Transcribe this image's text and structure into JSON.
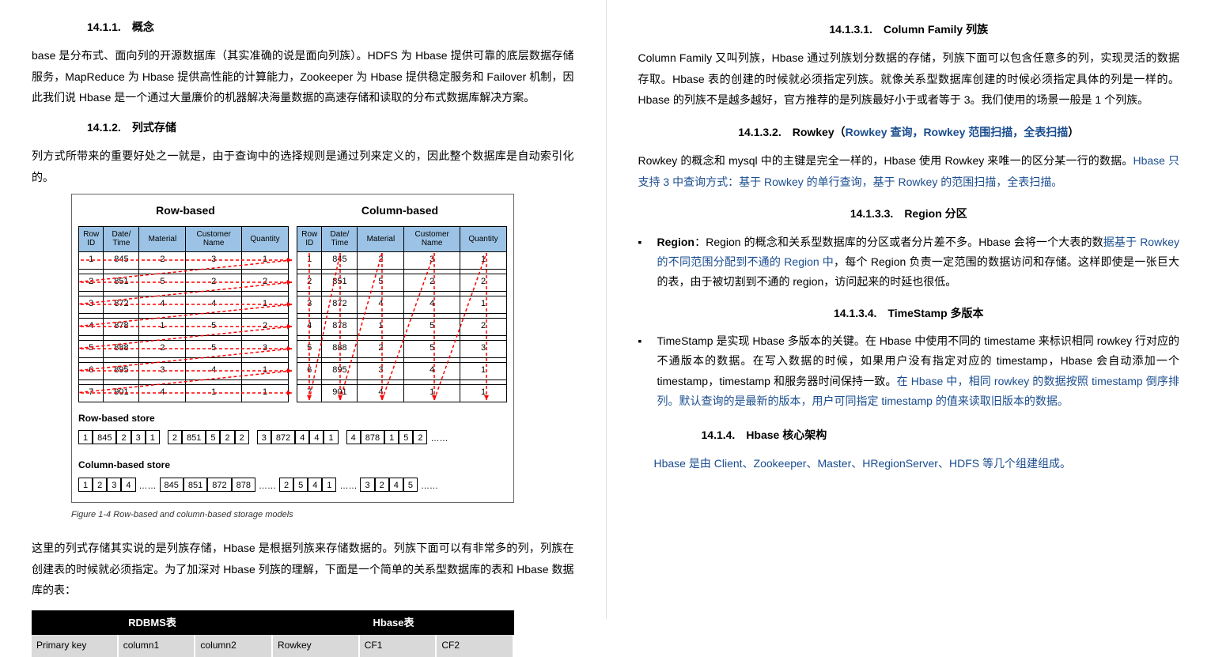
{
  "left": {
    "h1411": "14.1.1.　概念",
    "p1": "base 是分布式、面向列的开源数据库（其实准确的说是面向列族）。HDFS 为 Hbase 提供可靠的底层数据存储服务，MapReduce 为 Hbase 提供高性能的计算能力，Zookeeper 为 Hbase 提供稳定服务和 Failover 机制，因此我们说 Hbase 是一个通过大量廉价的机器解决海量数据的高速存储和读取的分布式数据库解决方案。",
    "h1412": "14.1.2.　列式存储",
    "p2": "列方式所带来的重要好处之一就是，由于查询中的选择规则是通过列来定义的，因此整个数据库是自动索引化的。",
    "fig": {
      "title_l": "Row-based",
      "title_r": "Column-based",
      "headers": [
        "Row ID",
        "Date/ Time",
        "Material",
        "Customer Name",
        "Quantity"
      ],
      "rows": [
        [
          "1",
          "845",
          "2",
          "3",
          "1"
        ],
        [
          "2",
          "851",
          "5",
          "2",
          "2"
        ],
        [
          "3",
          "872",
          "4",
          "4",
          "1"
        ],
        [
          "4",
          "878",
          "1",
          "5",
          "2"
        ],
        [
          "5",
          "888",
          "2",
          "5",
          "3"
        ],
        [
          "6",
          "895",
          "3",
          "4",
          "1"
        ],
        [
          "7",
          "901",
          "4",
          "1",
          "1"
        ]
      ],
      "rb_label": "Row-based store",
      "rb": [
        [
          "1",
          "845",
          "2",
          "3",
          "1"
        ],
        [
          "2",
          "851",
          "5",
          "2",
          "2"
        ],
        [
          "3",
          "872",
          "4",
          "4",
          "1"
        ],
        [
          "4",
          "878",
          "1",
          "5",
          "2"
        ]
      ],
      "cb_label": "Column-based store",
      "cb": [
        [
          "1",
          "2",
          "3",
          "4"
        ],
        [
          "845",
          "851",
          "872",
          "878"
        ],
        [
          "2",
          "5",
          "4",
          "1"
        ],
        [
          "3",
          "2",
          "4",
          "5"
        ]
      ],
      "dots": "……",
      "caption": "Figure 1-4   Row-based and column-based storage models"
    },
    "p3": "这里的列式存储其实说的是列族存储，Hbase 是根据列族来存储数据的。列族下面可以有非常多的列，列族在创建表的时候就必须指定。为了加深对 Hbase 列族的理解，下面是一个简单的关系型数据库的表和 Hbase 数据库的表：",
    "cmp": {
      "h": [
        "RDBMS表",
        "Hbase表"
      ],
      "r": [
        "Primary key",
        "column1",
        "column2",
        "Rowkey",
        "CF1",
        "CF2"
      ]
    }
  },
  "right": {
    "h1": "14.1.3.1.　Column Family 列族",
    "p1": "Column Family 又叫列族，Hbase 通过列族划分数据的存储，列族下面可以包含任意多的列，实现灵活的数据存取。Hbase 表的创建的时候就必须指定列族。就像关系型数据库创建的时候必须指定具体的列是一样的。Hbase 的列族不是越多越好，官方推荐的是列族最好小于或者等于 3。我们使用的场景一般是 1 个列族。",
    "h2_pre": "14.1.3.2.　Rowkey（",
    "h2_link": "Rowkey 查询，Rowkey 范围扫描，全表扫描",
    "h2_post": "）",
    "p2_a": "Rowkey 的概念和 mysql 中的主键是完全一样的，Hbase 使用 Rowkey 来唯一的区分某一行的数据。",
    "p2_b": "Hbase 只支持 3 中查询方式：基于 Rowkey 的单行查询，基于 Rowkey 的范围扫描，全表扫描。",
    "h3": "14.1.3.3.　Region 分区",
    "b1_a": "Region",
    "b1_b": "：Region 的概念和关系型数据库的分区或者分片差不多。Hbase 会将一个大表的数",
    "b1_link": "据基于 Rowkey 的不同范围分配到不通的 Region 中",
    "b1_c": "，每个 Region 负责一定范围的数据访问和存储。这样即使是一张巨大的表，由于被切割到不通的 region，访问起来的时延也很低。",
    "h4": "14.1.3.4.　TimeStamp 多版本",
    "b2_a": "TimeStamp 是实现 Hbase 多版本的关键。在 Hbase 中使用不同的 timestame 来标识相同 rowkey 行对应的不通版本的数据。在写入数据的时候，如果用户没有指定对应的 timestamp，Hbase 会自动添加一个 timestamp，timestamp 和服务器时间保持一致。",
    "b2_link": "在 Hbase 中，相同 rowkey 的数据按照 timestamp 倒序排列。默认查询的是最新的版本，用户可同指定 timestamp 的值来读取旧版本的数据。",
    "h1414": "14.1.4.　Hbase 核心架构",
    "p3": "Hbase 是由 Client、Zookeeper、Master、HRegionServer、HDFS 等几个组建组成。"
  }
}
